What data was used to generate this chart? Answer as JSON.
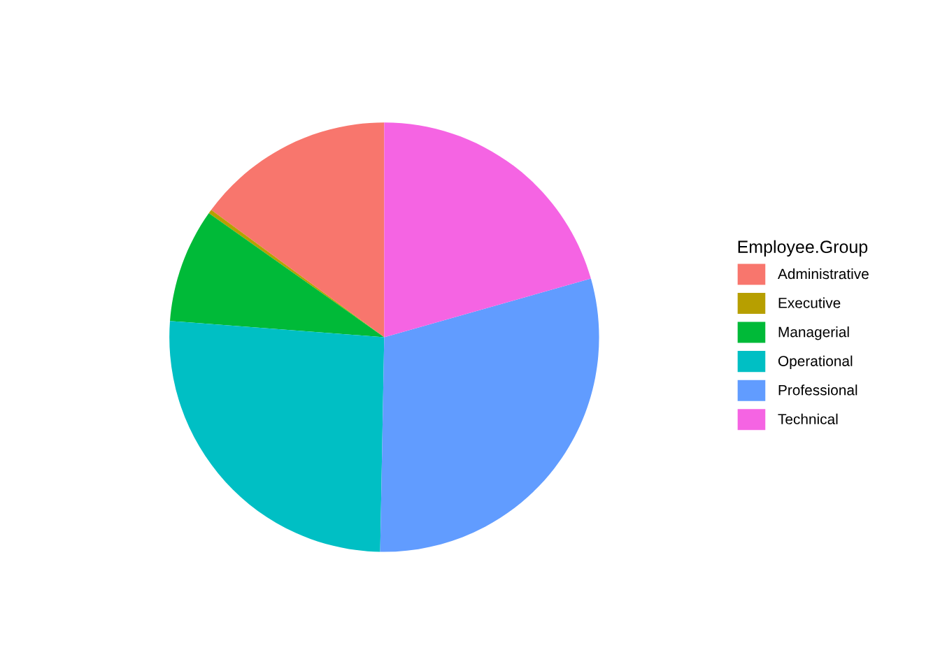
{
  "chart_data": {
    "type": "pie",
    "legend_title": "Employee.Group",
    "categories": [
      "Administrative",
      "Executive",
      "Managerial",
      "Operational",
      "Professional",
      "Technical"
    ],
    "values": [
      14.9,
      0.3,
      8.6,
      25.9,
      29.7,
      20.6
    ],
    "colors": [
      "#f8766d",
      "#b79f00",
      "#00ba38",
      "#00bfc4",
      "#619cff",
      "#f564e3"
    ],
    "legend": "right"
  }
}
